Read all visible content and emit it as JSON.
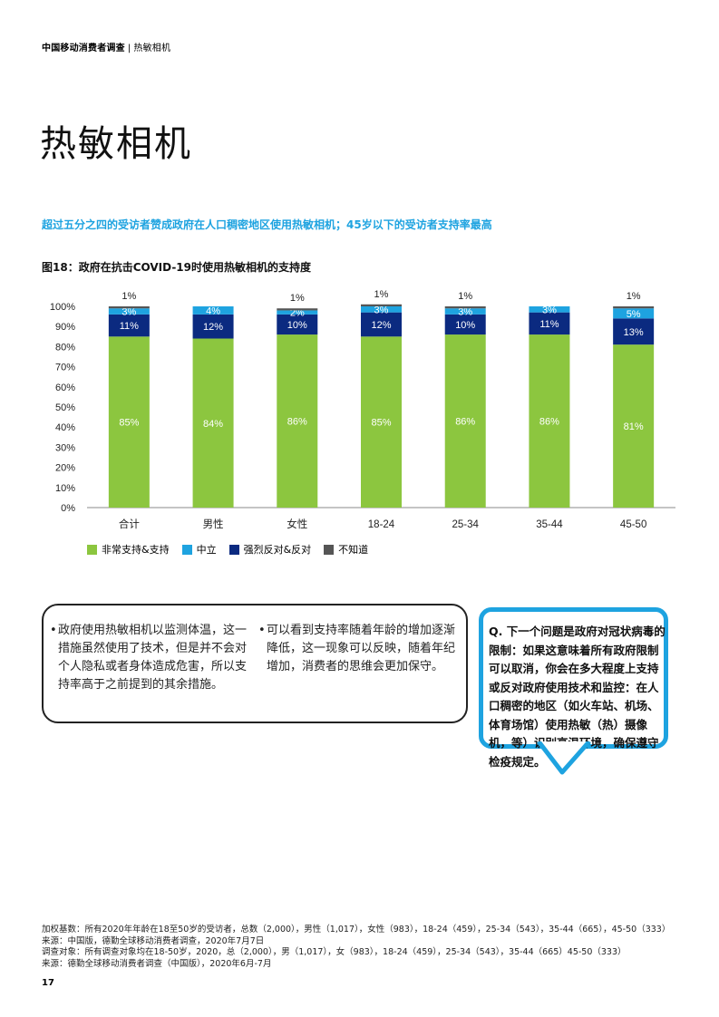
{
  "header": {
    "report": "中国移动消费者调查",
    "separator": "|",
    "section": "热敏相机"
  },
  "title": "热敏相机",
  "headline": "超过五分之四的受访者赞成政府在人口稠密地区使用热敏相机；45岁以下的受访者支持率最高",
  "figure_title": "图18：政府在抗击COVID-19时使用热敏相机的支持度",
  "colors": {
    "support": "#8cc63f",
    "neutral": "#1ea3e0",
    "oppose": "#0b2a80",
    "unknown": "#555555"
  },
  "chart_data": {
    "type": "bar",
    "stacked": true,
    "categories": [
      "合计",
      "男性",
      "女性",
      "18-24",
      "25-34",
      "35-44",
      "45-50"
    ],
    "series": [
      {
        "name": "非常支持&支持",
        "values": [
          85,
          84,
          86,
          85,
          86,
          86,
          81
        ],
        "labels": [
          "85%",
          "84%",
          "86%",
          "85%",
          "86%",
          "86%",
          "81%"
        ]
      },
      {
        "name": "强烈反对&反对",
        "values": [
          11,
          12,
          10,
          12,
          10,
          11,
          13
        ],
        "labels": [
          "11%",
          "12%",
          "10%",
          "12%",
          "10%",
          "11%",
          "13%"
        ]
      },
      {
        "name": "中立",
        "values": [
          3,
          4,
          2,
          3,
          3,
          3,
          5
        ],
        "labels": [
          "3%",
          "4%",
          "2%",
          "3%",
          "3%",
          "3%",
          "5%"
        ]
      },
      {
        "name": "不知道",
        "values": [
          1,
          0,
          1,
          1,
          1,
          0,
          1
        ],
        "labels": [
          "1%",
          "",
          "1%",
          "1%",
          "1%",
          "",
          "1%"
        ]
      }
    ],
    "yticks": [
      "0%",
      "10%",
      "20%",
      "30%",
      "40%",
      "50%",
      "60%",
      "70%",
      "80%",
      "90%",
      "100%"
    ],
    "ylim": [
      0,
      100
    ],
    "legend": [
      {
        "label": "非常支持&支持",
        "color": "#8cc63f"
      },
      {
        "label": "中立",
        "color": "#1ea3e0"
      },
      {
        "label": "强烈反对&反对",
        "color": "#0b2a80"
      },
      {
        "label": "不知道",
        "color": "#555555"
      }
    ],
    "legend_position": "bottom-left"
  },
  "box": {
    "bullet": "•",
    "col1": "政府使用热敏相机以监测体温，这一措施虽然使用了技术，但是并不会对个人隐私或者身体造成危害，所以支持率高于之前提到的其余措施。",
    "col2": "可以看到支持率随着年龄的增加逐渐降低，这一现象可以反映，随着年纪增加，消费者的思维会更加保守。"
  },
  "question": "Q. 下一个问题是政府对冠状病毒的限制：如果这意味着所有政府限制可以取消，你会在多大程度上支持或反对政府使用技术和监控：在人口稠密的地区（如火车站、机场、体育场馆）使用热敏（热）摄像机，等）识别高温环境，确保遵守检疫规定。",
  "footnote": {
    "line1": "加权基数：所有2020年年龄在18至50岁的受访者，总数（2,000），男性（1,017），女性（983），18-24（459），25-34（543），35-44（665），45-50（333）来源：中国版，德勤全球移动消费者调查，2020年7月7日",
    "line2": "调查对象：所有调查对象均在18-50岁，2020，总（2,000），男（1,017），女（983），18-24（459），25-34（543），35-44（665）45-50（333）",
    "line3": "来源：德勤全球移动消费者调查（中国版），2020年6月-7月"
  },
  "page_number": "17"
}
